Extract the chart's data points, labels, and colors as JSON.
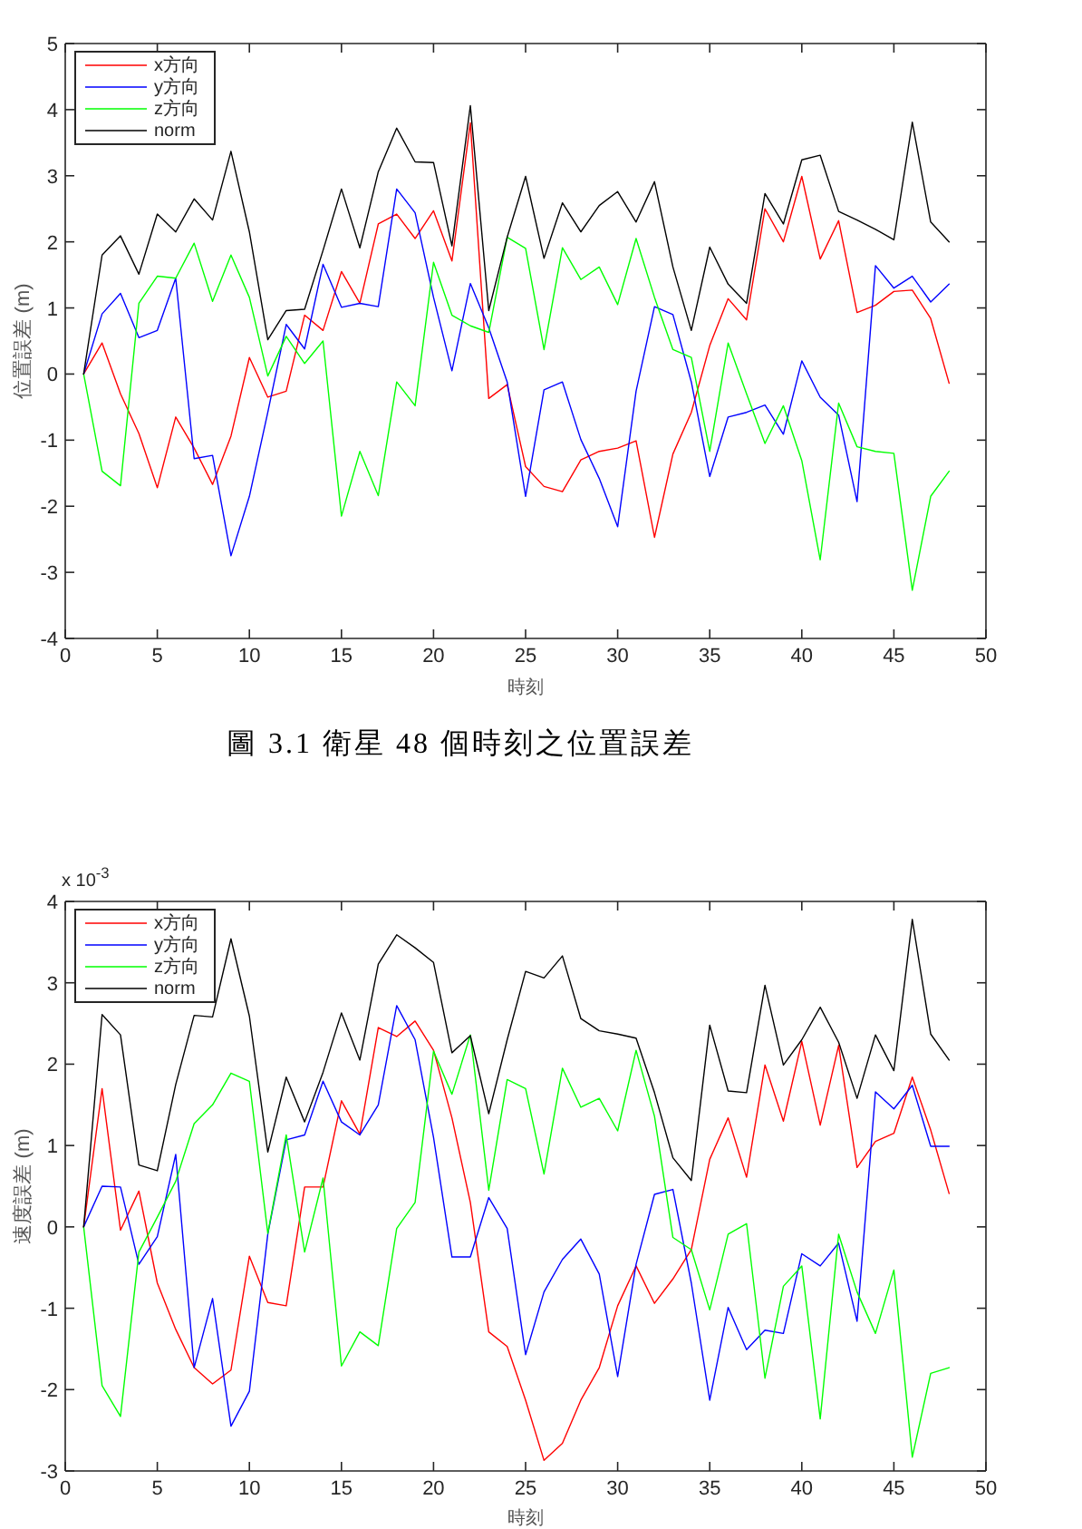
{
  "chart_data": [
    {
      "type": "line",
      "xlabel": "時刻",
      "ylabel": "位置誤差 (m)",
      "legend": "top left",
      "marker": "none",
      "line_style": "solid",
      "x": [
        1,
        2,
        3,
        4,
        5,
        6,
        7,
        8,
        9,
        10,
        11,
        12,
        13,
        14,
        15,
        16,
        17,
        18,
        19,
        20,
        21,
        22,
        23,
        24,
        25,
        26,
        27,
        28,
        29,
        30,
        31,
        32,
        33,
        34,
        35,
        36,
        37,
        38,
        39,
        40,
        41,
        42,
        43,
        44,
        45,
        46,
        47,
        48
      ],
      "series": [
        {
          "name": "x方向",
          "color": "#ff0000",
          "values": [
            0,
            0.47,
            -0.3,
            -0.9,
            -1.72,
            -0.65,
            -1.12,
            -1.67,
            -0.94,
            0.25,
            -0.35,
            -0.26,
            0.89,
            0.66,
            1.55,
            1.07,
            2.27,
            2.42,
            2.05,
            2.47,
            1.71,
            3.8,
            -0.37,
            -0.16,
            -1.4,
            -1.7,
            -1.78,
            -1.3,
            -1.17,
            -1.12,
            -1.01,
            -2.47,
            -1.21,
            -0.58,
            0.43,
            1.14,
            0.82,
            2.5,
            2.0,
            2.99,
            1.74,
            2.32,
            0.93,
            1.04,
            1.25,
            1.27,
            0.84,
            -0.14
          ]
        },
        {
          "name": "y方向",
          "color": "#0000ff",
          "values": [
            0,
            0.91,
            1.22,
            0.55,
            0.66,
            1.45,
            -1.28,
            -1.23,
            -2.75,
            -1.85,
            -0.58,
            0.75,
            0.38,
            1.66,
            1.01,
            1.07,
            1.02,
            2.8,
            2.44,
            1.16,
            0.05,
            1.37,
            0.7,
            -0.12,
            -1.85,
            -0.24,
            -0.12,
            -0.99,
            -1.58,
            -2.31,
            -0.26,
            1.02,
            0.9,
            -0.12,
            -1.55,
            -0.65,
            -0.58,
            -0.47,
            -0.91,
            0.2,
            -0.35,
            -0.62,
            -1.93,
            1.64,
            1.3,
            1.48,
            1.09,
            1.36
          ]
        },
        {
          "name": "z方向",
          "color": "#00ff00",
          "values": [
            0,
            -1.47,
            -1.69,
            1.07,
            1.48,
            1.45,
            1.98,
            1.1,
            1.8,
            1.16,
            -0.03,
            0.57,
            0.16,
            0.5,
            -2.15,
            -1.17,
            -1.84,
            -0.12,
            -0.48,
            1.69,
            0.89,
            0.73,
            0.63,
            2.07,
            1.9,
            0.37,
            1.91,
            1.43,
            1.62,
            1.05,
            2.05,
            1.16,
            0.37,
            0.25,
            -1.17,
            0.47,
            -0.3,
            -1.05,
            -0.48,
            -1.31,
            -2.81,
            -0.44,
            -1.1,
            -1.17,
            -1.2,
            -3.27,
            -1.85,
            -1.47
          ]
        },
        {
          "name": "norm",
          "color": "#000000",
          "values": [
            0,
            1.8,
            2.09,
            1.51,
            2.42,
            2.15,
            2.65,
            2.33,
            3.37,
            2.15,
            0.52,
            0.96,
            0.98,
            1.87,
            2.8,
            1.91,
            3.06,
            3.72,
            3.21,
            3.2,
            1.94,
            4.06,
            0.96,
            2.07,
            2.99,
            1.75,
            2.59,
            2.15,
            2.55,
            2.76,
            2.3,
            2.91,
            1.62,
            0.66,
            1.92,
            1.36,
            1.07,
            2.73,
            2.27,
            3.24,
            3.31,
            2.46,
            2.33,
            2.19,
            2.03,
            3.81,
            2.3,
            2.0
          ]
        }
      ],
      "xlim": [
        0,
        50
      ],
      "xticks": [
        0,
        5,
        10,
        15,
        20,
        25,
        30,
        35,
        40,
        45,
        50
      ],
      "ylim": [
        -4,
        5
      ],
      "yticks": [
        -4,
        -3,
        -2,
        -1,
        0,
        1,
        2,
        3,
        4,
        5
      ],
      "annotations": [
        "圖 3.1 衛星 48 個時刻之位置誤差"
      ]
    },
    {
      "type": "line",
      "xlabel": "時刻",
      "ylabel": "速度誤差 (m)",
      "legend": "top left",
      "marker": "none",
      "line_style": "solid",
      "x": [
        1,
        2,
        3,
        4,
        5,
        6,
        7,
        8,
        9,
        10,
        11,
        12,
        13,
        14,
        15,
        16,
        17,
        18,
        19,
        20,
        21,
        22,
        23,
        24,
        25,
        26,
        27,
        28,
        29,
        30,
        31,
        32,
        33,
        34,
        35,
        36,
        37,
        38,
        39,
        40,
        41,
        42,
        43,
        44,
        45,
        46,
        47,
        48
      ],
      "series": [
        {
          "name": "x方向",
          "color": "#ff0000",
          "values": [
            0,
            1.7,
            -0.04,
            0.44,
            -0.69,
            -1.26,
            -1.73,
            -1.93,
            -1.76,
            -0.36,
            -0.93,
            -0.97,
            0.49,
            0.49,
            1.55,
            1.14,
            2.45,
            2.34,
            2.53,
            2.17,
            1.34,
            0.3,
            -1.29,
            -1.47,
            -2.13,
            -2.87,
            -2.66,
            -2.13,
            -1.73,
            -0.97,
            -0.48,
            -0.94,
            -0.64,
            -0.28,
            0.83,
            1.34,
            0.61,
            1.99,
            1.3,
            2.28,
            1.25,
            2.23,
            0.73,
            1.05,
            1.15,
            1.84,
            1.19,
            0.41
          ]
        },
        {
          "name": "y方向",
          "color": "#0000ff",
          "values": [
            0,
            0.5,
            0.49,
            -0.46,
            -0.12,
            0.89,
            -1.73,
            -0.88,
            -2.45,
            -2.02,
            -0.09,
            1.07,
            1.13,
            1.79,
            1.29,
            1.13,
            1.5,
            2.72,
            2.3,
            1.1,
            -0.37,
            -0.37,
            0.36,
            -0.02,
            -1.57,
            -0.8,
            -0.4,
            -0.15,
            -0.58,
            -1.84,
            -0.46,
            0.4,
            0.46,
            -0.69,
            -2.13,
            -0.99,
            -1.51,
            -1.27,
            -1.31,
            -0.33,
            -0.48,
            -0.2,
            -1.16,
            1.66,
            1.45,
            1.74,
            0.99,
            0.99
          ]
        },
        {
          "name": "z方向",
          "color": "#00ff00",
          "values": [
            0,
            -1.95,
            -2.33,
            -0.31,
            0.12,
            0.56,
            1.27,
            1.5,
            1.89,
            1.79,
            -0.08,
            1.13,
            -0.31,
            0.6,
            -1.71,
            -1.29,
            -1.46,
            -0.02,
            0.3,
            2.16,
            1.63,
            2.36,
            0.45,
            1.81,
            1.7,
            0.65,
            1.95,
            1.47,
            1.58,
            1.18,
            2.17,
            1.36,
            -0.13,
            -0.28,
            -1.02,
            -0.09,
            0.04,
            -1.86,
            -0.73,
            -0.48,
            -2.36,
            -0.09,
            -0.8,
            -1.31,
            -0.53,
            -2.83,
            -1.8,
            -1.73
          ]
        },
        {
          "name": "norm",
          "color": "#000000",
          "values": [
            0,
            2.61,
            2.36,
            0.76,
            0.69,
            1.75,
            2.6,
            2.58,
            3.54,
            2.59,
            0.92,
            1.84,
            1.29,
            1.9,
            2.63,
            2.05,
            3.23,
            3.59,
            3.43,
            3.25,
            2.14,
            2.35,
            1.39,
            2.3,
            3.14,
            3.06,
            3.33,
            2.56,
            2.41,
            2.37,
            2.32,
            1.65,
            0.85,
            0.57,
            2.48,
            1.67,
            1.65,
            2.97,
            1.99,
            2.3,
            2.7,
            2.27,
            1.58,
            2.36,
            1.92,
            3.78,
            2.37,
            2.05
          ]
        }
      ],
      "xlim": [
        0,
        50
      ],
      "xticks": [
        0,
        5,
        10,
        15,
        20,
        25,
        30,
        35,
        40,
        45,
        50
      ],
      "ylim": [
        -3,
        4
      ],
      "yticks": [
        -3,
        -2,
        -1,
        0,
        1,
        2,
        3,
        4
      ],
      "annotations": [
        "x 10$^{-3}$"
      ]
    }
  ]
}
